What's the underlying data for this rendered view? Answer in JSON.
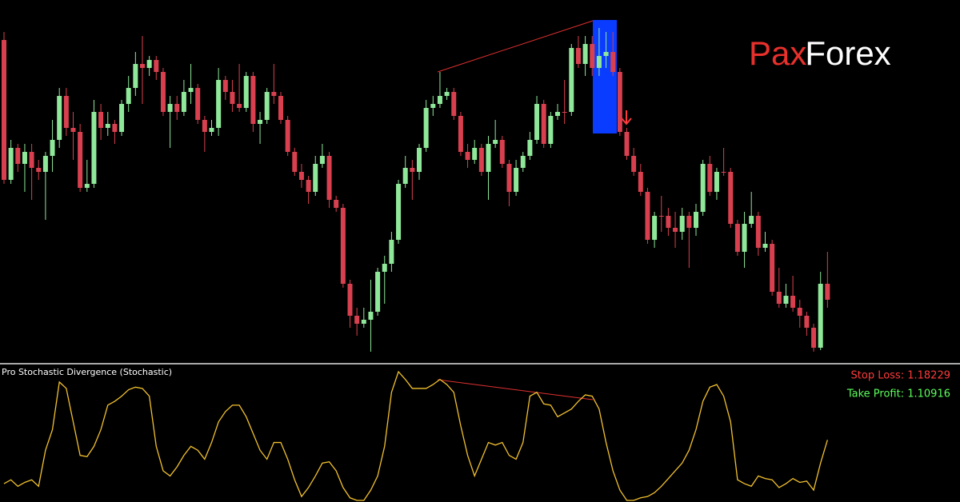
{
  "logo": {
    "left": "Pax",
    "right": "Forex"
  },
  "chart_data": [
    {
      "type": "candlestick",
      "ylim": [
        0,
        460
      ],
      "up_color": "#8fe89a",
      "down_color": "#d8404f",
      "candles": [
        [
          410,
          420,
          230,
          235
        ],
        [
          235,
          285,
          230,
          275
        ],
        [
          275,
          280,
          245,
          255
        ],
        [
          255,
          280,
          220,
          270
        ],
        [
          270,
          280,
          210,
          250
        ],
        [
          250,
          260,
          235,
          245
        ],
        [
          245,
          270,
          185,
          265
        ],
        [
          265,
          310,
          245,
          285
        ],
        [
          285,
          350,
          275,
          340
        ],
        [
          340,
          350,
          290,
          300
        ],
        [
          300,
          320,
          260,
          295
        ],
        [
          295,
          305,
          220,
          225
        ],
        [
          225,
          260,
          220,
          230
        ],
        [
          230,
          335,
          225,
          320
        ],
        [
          320,
          330,
          285,
          300
        ],
        [
          300,
          320,
          290,
          305
        ],
        [
          305,
          310,
          280,
          295
        ],
        [
          295,
          335,
          290,
          330
        ],
        [
          330,
          365,
          320,
          350
        ],
        [
          350,
          395,
          340,
          380
        ],
        [
          380,
          415,
          330,
          375
        ],
        [
          375,
          390,
          365,
          385
        ],
        [
          385,
          390,
          360,
          370
        ],
        [
          370,
          375,
          315,
          320
        ],
        [
          320,
          340,
          275,
          330
        ],
        [
          330,
          340,
          310,
          320
        ],
        [
          320,
          360,
          315,
          345
        ],
        [
          345,
          380,
          330,
          350
        ],
        [
          350,
          355,
          305,
          310
        ],
        [
          310,
          315,
          270,
          295
        ],
        [
          295,
          310,
          290,
          300
        ],
        [
          300,
          375,
          290,
          360
        ],
        [
          360,
          365,
          335,
          345
        ],
        [
          345,
          360,
          320,
          330
        ],
        [
          330,
          380,
          320,
          325
        ],
        [
          325,
          370,
          320,
          365
        ],
        [
          365,
          370,
          295,
          305
        ],
        [
          305,
          320,
          280,
          310
        ],
        [
          310,
          350,
          305,
          345
        ],
        [
          345,
          380,
          330,
          340
        ],
        [
          340,
          345,
          305,
          310
        ],
        [
          310,
          315,
          265,
          270
        ],
        [
          270,
          275,
          240,
          245
        ],
        [
          245,
          255,
          225,
          235
        ],
        [
          235,
          240,
          205,
          220
        ],
        [
          220,
          265,
          215,
          255
        ],
        [
          255,
          280,
          250,
          265
        ],
        [
          265,
          270,
          200,
          210
        ],
        [
          210,
          215,
          195,
          200
        ],
        [
          200,
          205,
          100,
          105
        ],
        [
          105,
          110,
          50,
          65
        ],
        [
          65,
          75,
          40,
          55
        ],
        [
          55,
          75,
          50,
          60
        ],
        [
          60,
          110,
          20,
          70
        ],
        [
          70,
          125,
          65,
          120
        ],
        [
          120,
          140,
          80,
          130
        ],
        [
          130,
          170,
          120,
          160
        ],
        [
          160,
          235,
          155,
          230
        ],
        [
          230,
          265,
          225,
          250
        ],
        [
          250,
          260,
          210,
          245
        ],
        [
          245,
          280,
          235,
          275
        ],
        [
          275,
          335,
          270,
          325
        ],
        [
          325,
          340,
          315,
          330
        ],
        [
          330,
          370,
          325,
          340
        ],
        [
          340,
          350,
          335,
          345
        ],
        [
          345,
          350,
          310,
          315
        ],
        [
          315,
          320,
          265,
          270
        ],
        [
          270,
          280,
          250,
          260
        ],
        [
          260,
          285,
          255,
          275
        ],
        [
          275,
          280,
          240,
          245
        ],
        [
          245,
          290,
          210,
          280
        ],
        [
          280,
          310,
          275,
          285
        ],
        [
          285,
          290,
          250,
          255
        ],
        [
          255,
          260,
          202,
          220
        ],
        [
          220,
          260,
          215,
          250
        ],
        [
          250,
          270,
          245,
          265
        ],
        [
          265,
          295,
          260,
          285
        ],
        [
          285,
          340,
          280,
          330
        ],
        [
          330,
          335,
          275,
          280
        ],
        [
          280,
          320,
          275,
          315
        ],
        [
          315,
          330,
          310,
          320
        ],
        [
          320,
          360,
          305,
          320
        ],
        [
          320,
          405,
          315,
          400
        ],
        [
          400,
          415,
          375,
          380
        ],
        [
          380,
          415,
          365,
          405
        ],
        [
          405,
          415,
          365,
          375
        ],
        [
          375,
          425,
          365,
          390
        ],
        [
          390,
          420,
          375,
          395
        ],
        [
          395,
          420,
          365,
          370
        ],
        [
          370,
          375,
          290,
          295
        ],
        [
          295,
          300,
          260,
          265
        ],
        [
          265,
          275,
          240,
          245
        ],
        [
          245,
          255,
          215,
          220
        ],
        [
          220,
          225,
          155,
          160
        ],
        [
          160,
          195,
          150,
          190
        ],
        [
          190,
          215,
          170,
          190
        ],
        [
          190,
          200,
          165,
          175
        ],
        [
          175,
          195,
          150,
          170
        ],
        [
          170,
          200,
          160,
          190
        ],
        [
          190,
          195,
          125,
          175
        ],
        [
          175,
          205,
          165,
          195
        ],
        [
          195,
          260,
          190,
          255
        ],
        [
          255,
          265,
          215,
          220
        ],
        [
          220,
          250,
          210,
          245
        ],
        [
          245,
          275,
          240,
          245
        ],
        [
          245,
          250,
          175,
          180
        ],
        [
          180,
          185,
          140,
          145
        ],
        [
          145,
          195,
          125,
          180
        ],
        [
          180,
          220,
          175,
          190
        ],
        [
          190,
          195,
          140,
          150
        ],
        [
          150,
          170,
          145,
          155
        ],
        [
          155,
          160,
          90,
          95
        ],
        [
          95,
          125,
          75,
          80
        ],
        [
          80,
          105,
          75,
          90
        ],
        [
          90,
          115,
          70,
          75
        ],
        [
          75,
          85,
          50,
          65
        ],
        [
          65,
          70,
          40,
          50
        ],
        [
          50,
          55,
          20,
          25
        ],
        [
          25,
          120,
          22,
          105
        ],
        [
          105,
          145,
          75,
          85
        ]
      ]
    },
    {
      "type": "line",
      "title": "Pro Stochastic Divergence (Stochastic)",
      "ylim": [
        0,
        100
      ],
      "series": [
        {
          "color": "#f2c12e",
          "values": [
            13,
            16,
            11,
            14,
            16,
            11,
            39,
            55,
            92,
            87,
            61,
            35,
            34,
            42,
            55,
            74,
            77,
            81,
            86,
            88,
            87,
            81,
            42,
            23,
            19,
            26,
            35,
            42,
            39,
            32,
            45,
            61,
            69,
            74,
            74,
            65,
            52,
            39,
            32,
            45,
            45,
            32,
            16,
            3,
            10,
            19,
            29,
            30,
            23,
            10,
            2,
            0,
            0,
            8,
            19,
            42,
            84,
            100,
            94,
            87,
            87,
            87,
            90,
            94,
            90,
            84,
            58,
            35,
            19,
            32,
            45,
            43,
            45,
            35,
            32,
            45,
            81,
            84,
            75,
            74,
            65,
            68,
            71,
            77,
            82,
            81,
            71,
            45,
            23,
            8,
            0,
            0,
            2,
            3,
            6,
            11,
            17,
            23,
            29,
            39,
            55,
            77,
            88,
            90,
            81,
            61,
            16,
            13,
            11,
            19,
            17,
            16,
            10,
            13,
            17,
            14,
            15,
            8,
            29,
            47
          ]
        }
      ],
      "annotations": [
        {
          "text": "Stop Loss: 1.18229",
          "color": "#ff3a3a"
        },
        {
          "text": "Take Profit: 1.10916",
          "color": "#5cff5c"
        }
      ]
    }
  ]
}
